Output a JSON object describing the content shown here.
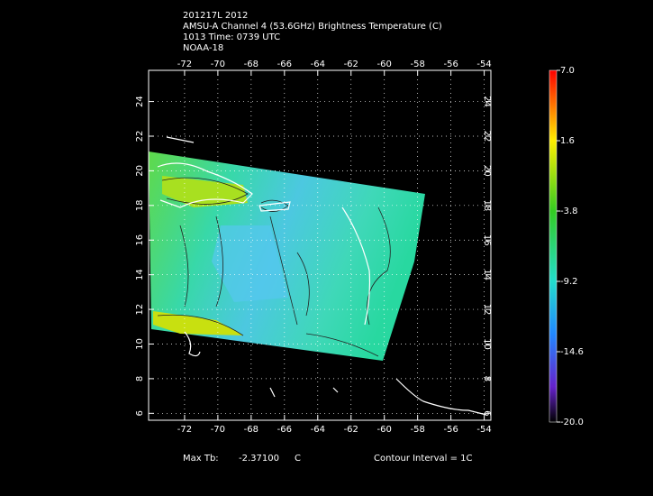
{
  "header": {
    "lines": [
      "201217L 2012",
      "AMSU-A Channel 4 (53.6GHz) Brightness Temperature (C)",
      "1013 Time: 0739 UTC",
      "NOAA-18"
    ]
  },
  "map": {
    "xlim": [
      -74.16,
      -53.6
    ],
    "ylim": [
      5.6,
      25.8
    ],
    "xticks": [
      -72,
      -70,
      -68,
      -66,
      -64,
      -62,
      -60,
      -58,
      -56,
      -54
    ],
    "yticks": [
      6,
      8,
      10,
      12,
      14,
      16,
      18,
      20,
      22,
      24
    ]
  },
  "colorbar": {
    "ticks": [
      {
        "value": 7,
        "label": "7.0"
      },
      1.6,
      -3.8,
      -9.2,
      -14.6,
      {
        "value": -20,
        "label": "-20.0"
      }
    ]
  },
  "footer": {
    "max_label": "Max Tb:",
    "max_value": "-2.37100",
    "max_unit": "C",
    "contour": "Contour Interval = 1C"
  }
}
